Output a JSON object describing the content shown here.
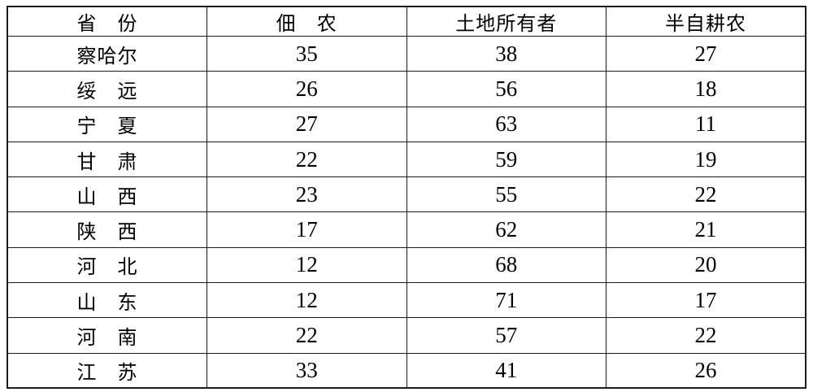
{
  "colors": {
    "background": "#ffffff",
    "text": "#000000",
    "border": "#1c1c1c"
  },
  "table": {
    "headers": [
      {
        "label": "省　份"
      },
      {
        "label": "佃　农"
      },
      {
        "label": "土地所有者"
      },
      {
        "label": "半自耕农"
      }
    ],
    "rows": [
      {
        "province": "察哈尔",
        "tenant_farmers": "35",
        "landowners": "38",
        "semi_owner_farmers": "27"
      },
      {
        "province": "绥　远",
        "tenant_farmers": "26",
        "landowners": "56",
        "semi_owner_farmers": "18"
      },
      {
        "province": "宁　夏",
        "tenant_farmers": "27",
        "landowners": "63",
        "semi_owner_farmers": "11"
      },
      {
        "province": "甘　肃",
        "tenant_farmers": "22",
        "landowners": "59",
        "semi_owner_farmers": "19"
      },
      {
        "province": "山　西",
        "tenant_farmers": "23",
        "landowners": "55",
        "semi_owner_farmers": "22"
      },
      {
        "province": "陕　西",
        "tenant_farmers": "17",
        "landowners": "62",
        "semi_owner_farmers": "21"
      },
      {
        "province": "河　北",
        "tenant_farmers": "12",
        "landowners": "68",
        "semi_owner_farmers": "20"
      },
      {
        "province": "山　东",
        "tenant_farmers": "12",
        "landowners": "71",
        "semi_owner_farmers": "17"
      },
      {
        "province": "河　南",
        "tenant_farmers": "22",
        "landowners": "57",
        "semi_owner_farmers": "22"
      },
      {
        "province": "江　苏",
        "tenant_farmers": "33",
        "landowners": "41",
        "semi_owner_farmers": "26"
      }
    ]
  }
}
